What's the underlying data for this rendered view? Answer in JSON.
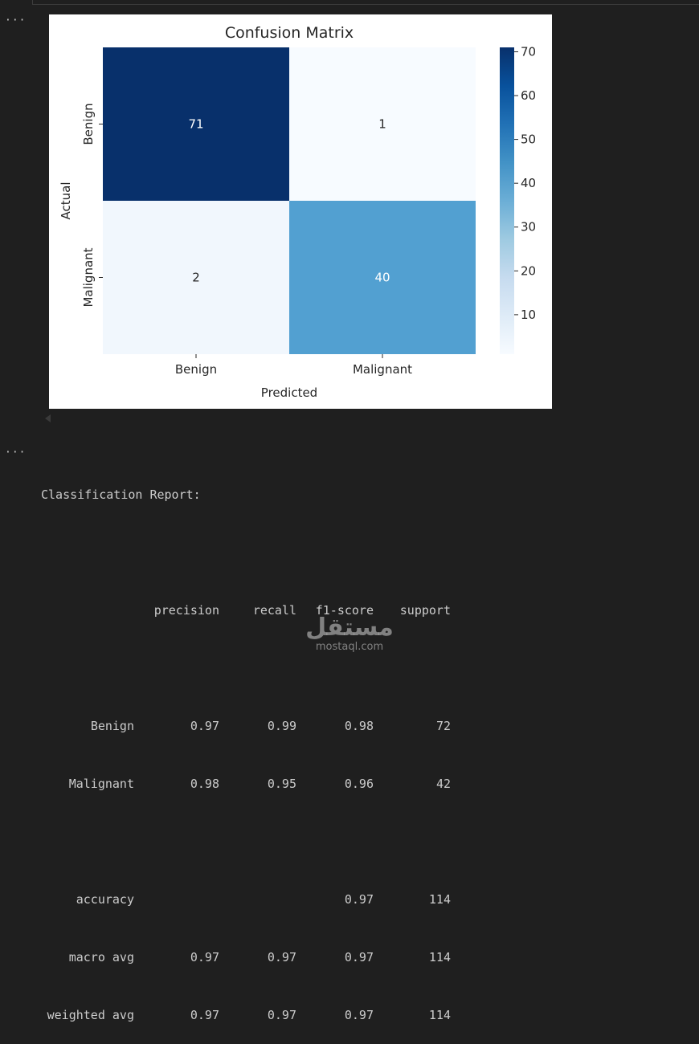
{
  "cell_output_marker": "···",
  "chart_data": {
    "type": "heatmap",
    "title": "Confusion Matrix",
    "xlabel": "Predicted",
    "ylabel": "Actual",
    "x_categories": [
      "Benign",
      "Malignant"
    ],
    "y_categories": [
      "Benign",
      "Malignant"
    ],
    "values": [
      [
        71,
        1
      ],
      [
        2,
        40
      ]
    ],
    "colormap": "Blues",
    "colorbar_range": [
      1,
      71
    ],
    "colorbar_ticks": [
      10,
      20,
      30,
      40,
      50,
      60,
      70
    ],
    "cell_colors": [
      [
        "#08306b",
        "#f7fbff"
      ],
      [
        "#f1f7fd",
        "#52a0d1"
      ]
    ],
    "annotation_colors": [
      [
        "#ffffff",
        "#262626"
      ],
      [
        "#262626",
        "#ffffff"
      ]
    ]
  },
  "report": {
    "heading": "Classification Report:",
    "columns": [
      "precision",
      "recall",
      "f1-score",
      "support"
    ],
    "rows": [
      {
        "label": "Benign",
        "precision": "0.97",
        "recall": "0.99",
        "f1": "0.98",
        "support": "72"
      },
      {
        "label": "Malignant",
        "precision": "0.98",
        "recall": "0.95",
        "f1": "0.96",
        "support": "42"
      }
    ],
    "summary": [
      {
        "label": "accuracy",
        "precision": "",
        "recall": "",
        "f1": "0.97",
        "support": "114"
      },
      {
        "label": "macro avg",
        "precision": "0.97",
        "recall": "0.97",
        "f1": "0.97",
        "support": "114"
      },
      {
        "label": "weighted avg",
        "precision": "0.97",
        "recall": "0.97",
        "f1": "0.97",
        "support": "114"
      }
    ]
  },
  "watermark": {
    "mark": "مستقل",
    "text": "mostaql.com"
  }
}
